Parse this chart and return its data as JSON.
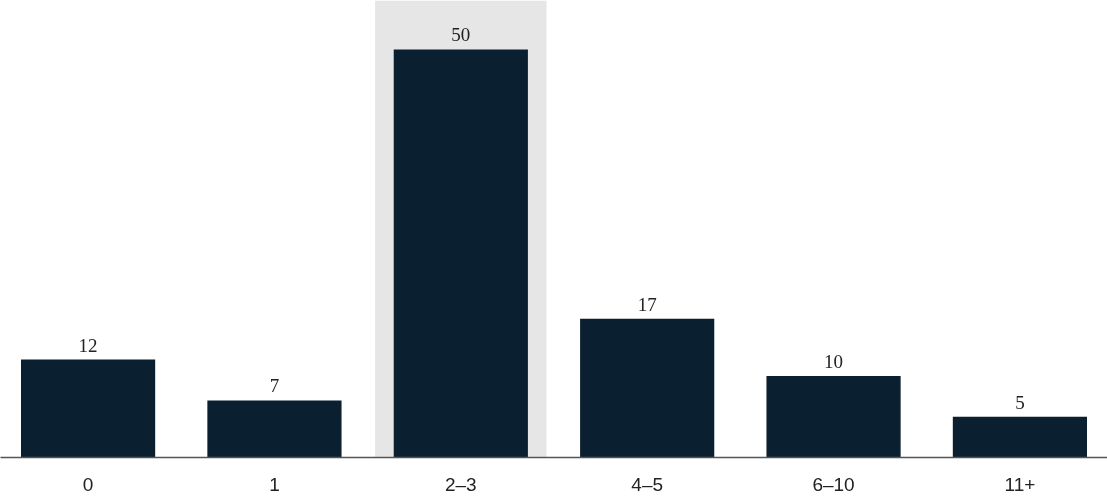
{
  "chart_data": {
    "type": "bar",
    "categories": [
      "0",
      "1",
      "2–3",
      "4–5",
      "6–10",
      "11+"
    ],
    "values": [
      12,
      7,
      50,
      17,
      10,
      5
    ],
    "color": "#0a1f2f",
    "data_labels": true,
    "bands": [
      {
        "axis": "x",
        "from": "2–3",
        "to": "2–3",
        "color": "#e6e6e6"
      }
    ]
  }
}
